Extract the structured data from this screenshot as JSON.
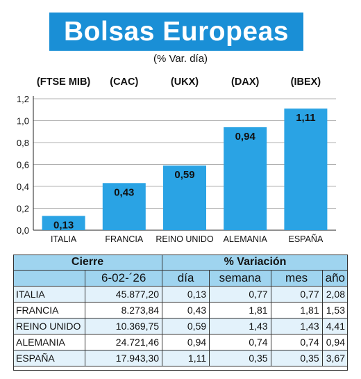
{
  "title": "Bolsas Europeas",
  "subtitle": "(% Var. día)",
  "chart_data": {
    "type": "bar",
    "categories": [
      "ITALIA",
      "FRANCIA",
      "REINO UNIDO",
      "ALEMANIA",
      "ESPAÑA"
    ],
    "index_labels": [
      "(FTSE MIB)",
      "(CAC)",
      "(UKX)",
      "(DAX)",
      "(IBEX)"
    ],
    "values": [
      0.13,
      0.43,
      0.59,
      0.94,
      1.11
    ],
    "value_labels": [
      "0,13",
      "0,43",
      "0,59",
      "0,94",
      "1,11"
    ],
    "y_ticks": [
      "0,0",
      "0,2",
      "0,4",
      "0,6",
      "0,8",
      "1,0",
      "1,2"
    ],
    "ylim": [
      0,
      1.2
    ],
    "grid": true,
    "bar_color": "#2aa3e4",
    "grid_color": "#b0b0b0"
  },
  "table": {
    "headers": {
      "cierre": "Cierre",
      "variacion": "% Variación"
    },
    "subheaders": {
      "date": "6-02-´26",
      "dia": "día",
      "semana": "semana",
      "mes": "mes",
      "ano": "año"
    },
    "rows": [
      {
        "name": "ITALIA",
        "cierre": "45.877,20",
        "dia": "0,13",
        "semana": "0,77",
        "mes": "0,77",
        "ano": "2,08"
      },
      {
        "name": "FRANCIA",
        "cierre": "8.273,84",
        "dia": "0,43",
        "semana": "1,81",
        "mes": "1,81",
        "ano": "1,53"
      },
      {
        "name": "REINO UNIDO",
        "cierre": "10.369,75",
        "dia": "0,59",
        "semana": "1,43",
        "mes": "1,43",
        "ano": "4,41"
      },
      {
        "name": "ALEMANIA",
        "cierre": "24.721,46",
        "dia": "0,94",
        "semana": "0,74",
        "mes": "0,74",
        "ano": "0,94"
      },
      {
        "name": "ESPAÑA",
        "cierre": "17.943,30",
        "dia": "1,11",
        "semana": "0,35",
        "mes": "0,35",
        "ano": "3,67"
      }
    ],
    "header_color": "#9fd4ef"
  }
}
